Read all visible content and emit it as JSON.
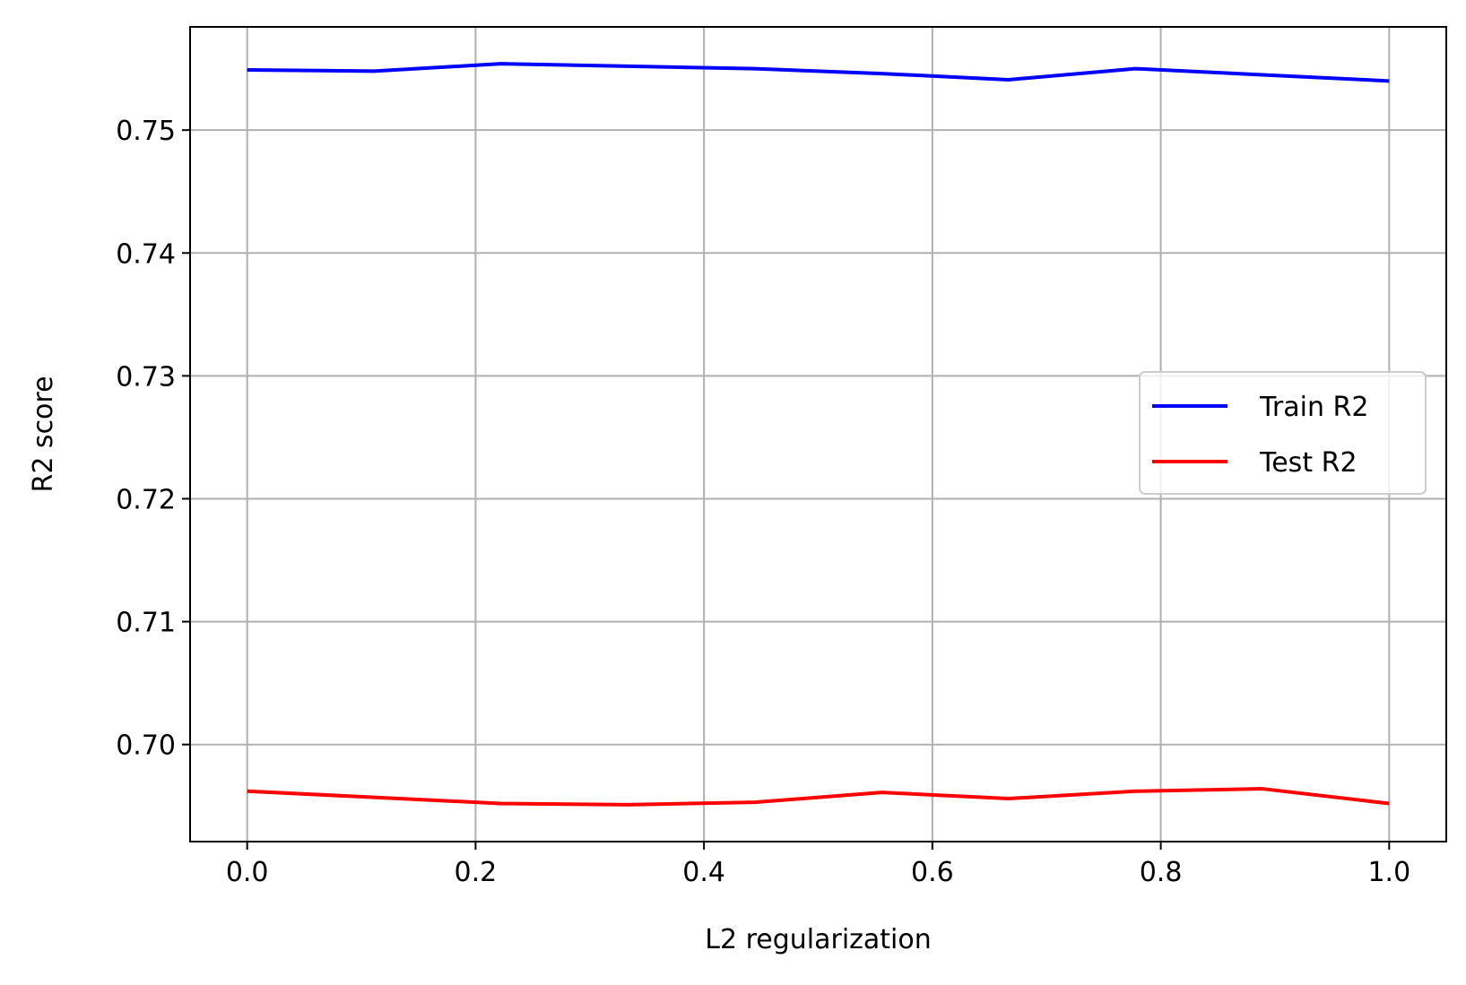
{
  "chart_data": {
    "type": "line",
    "title": "",
    "xlabel": "L2 regularization",
    "ylabel": "R2 score",
    "xlim": [
      -0.05,
      1.05
    ],
    "ylim": [
      0.6921,
      0.7584
    ],
    "x_ticks": [
      0.0,
      0.2,
      0.4,
      0.6,
      0.8,
      1.0
    ],
    "x_tick_labels": [
      "0.0",
      "0.2",
      "0.4",
      "0.6",
      "0.8",
      "1.0"
    ],
    "y_ticks": [
      0.7,
      0.71,
      0.72,
      0.73,
      0.74,
      0.75
    ],
    "y_tick_labels": [
      "0.70",
      "0.71",
      "0.72",
      "0.73",
      "0.74",
      "0.75"
    ],
    "grid": true,
    "legend_position": "center-right",
    "x": [
      0.0,
      0.1111,
      0.2222,
      0.3333,
      0.4444,
      0.5556,
      0.6667,
      0.7778,
      0.8889,
      1.0
    ],
    "series": [
      {
        "name": "Train R2",
        "color": "#0000ff",
        "values": [
          0.7549,
          0.7548,
          0.7554,
          0.7552,
          0.755,
          0.7546,
          0.7541,
          0.755,
          0.7545,
          0.754
        ]
      },
      {
        "name": "Test R2",
        "color": "#ff0000",
        "values": [
          0.6962,
          0.6957,
          0.6952,
          0.6951,
          0.6953,
          0.6961,
          0.6956,
          0.6962,
          0.6964,
          0.6952
        ]
      }
    ]
  }
}
